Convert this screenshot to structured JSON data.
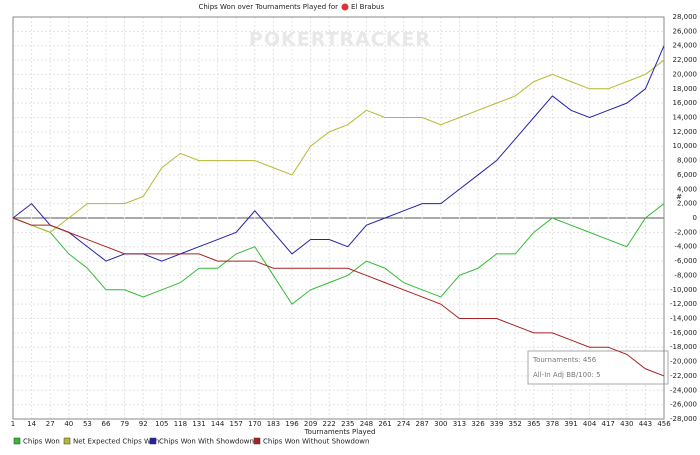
{
  "chart_data": {
    "type": "line",
    "title": "Chips Won over Tournaments Played for",
    "player": "El Brabus",
    "watermark": "POKERTRACKER",
    "x_label": "Tournaments Played",
    "y_label": "#",
    "annotation": [
      "Tournaments: 456",
      "All-In Adj BB/100: 5"
    ],
    "x": [
      1,
      14,
      27,
      40,
      53,
      66,
      79,
      92,
      105,
      118,
      131,
      144,
      157,
      170,
      183,
      196,
      209,
      222,
      235,
      248,
      261,
      274,
      287,
      300,
      313,
      326,
      339,
      352,
      365,
      378,
      391,
      404,
      417,
      430,
      443,
      456
    ],
    "xlim": [
      1,
      456
    ],
    "xticks": [
      1,
      14,
      27,
      40,
      53,
      66,
      79,
      92,
      105,
      118,
      131,
      144,
      157,
      170,
      183,
      196,
      209,
      222,
      235,
      248,
      261,
      274,
      287,
      300,
      313,
      326,
      339,
      352,
      365,
      378,
      391,
      404,
      417,
      430,
      443,
      456
    ],
    "ylim": [
      -28000,
      28000
    ],
    "yticks": [
      {
        "value": -28000,
        "label": "-28,000"
      },
      {
        "value": -26000,
        "label": "-26,000"
      },
      {
        "value": -24000,
        "label": "-24,000"
      },
      {
        "value": -22000,
        "label": "-22,000"
      },
      {
        "value": -20000,
        "label": "-20,000"
      },
      {
        "value": -18000,
        "label": "-18,000"
      },
      {
        "value": -16000,
        "label": "-16,000"
      },
      {
        "value": -14000,
        "label": "-14,000"
      },
      {
        "value": -12000,
        "label": "-12,000"
      },
      {
        "value": -10000,
        "label": "-10,000"
      },
      {
        "value": -8000,
        "label": "-8,000"
      },
      {
        "value": -6000,
        "label": "-6,000"
      },
      {
        "value": -4000,
        "label": "-4,000"
      },
      {
        "value": -2000,
        "label": "-2,000"
      },
      0,
      {
        "value": 2000,
        "label": "2,000"
      },
      {
        "value": 4000,
        "label": "4,000"
      },
      {
        "value": 6000,
        "label": "6,000"
      },
      {
        "value": 8000,
        "label": "8,000"
      },
      {
        "value": 10000,
        "label": "10,000"
      },
      {
        "value": 12000,
        "label": "12,000"
      },
      {
        "value": 14000,
        "label": "14,000"
      },
      {
        "value": 16000,
        "label": "16,000"
      },
      {
        "value": 18000,
        "label": "18,000"
      },
      {
        "value": 20000,
        "label": "20,000"
      },
      {
        "value": 22000,
        "label": "22,000"
      },
      {
        "value": 24000,
        "label": "24,000"
      },
      {
        "value": 26000,
        "label": "26,000"
      },
      {
        "value": 28000,
        "label": "28,000"
      }
    ],
    "grid": true,
    "legend": "bottom",
    "series": [
      {
        "name": "Chips Won",
        "color": "#33bb33",
        "values": [
          0,
          -1000,
          -2000,
          -5000,
          -7000,
          -10000,
          -10000,
          -11000,
          -10000,
          -9000,
          -7000,
          -7000,
          -5000,
          -4000,
          -8000,
          -12000,
          -10000,
          -9000,
          -8000,
          -6000,
          -7000,
          -9000,
          -10000,
          -11000,
          -8000,
          -7000,
          -5000,
          -5000,
          -2000,
          0,
          -1000,
          -2000,
          -3000,
          -4000,
          0,
          2000
        ]
      },
      {
        "name": "Net Expected Chips Won",
        "color": "#b8b832",
        "values": [
          0,
          -1000,
          -2000,
          0,
          2000,
          2000,
          2000,
          3000,
          7000,
          9000,
          8000,
          8000,
          8000,
          8000,
          7000,
          6000,
          10000,
          12000,
          13000,
          15000,
          14000,
          14000,
          14000,
          13000,
          14000,
          15000,
          16000,
          17000,
          19000,
          20000,
          19000,
          18000,
          18000,
          19000,
          20000,
          22000
        ]
      },
      {
        "name": "Chips Won With Showdown",
        "color": "#2222aa",
        "values": [
          0,
          2000,
          -1000,
          -2000,
          -4000,
          -6000,
          -5000,
          -5000,
          -6000,
          -5000,
          -4000,
          -3000,
          -2000,
          1000,
          -2000,
          -5000,
          -3000,
          -3000,
          -4000,
          -1000,
          0,
          1000,
          2000,
          2000,
          4000,
          6000,
          8000,
          11000,
          14000,
          17000,
          15000,
          14000,
          15000,
          16000,
          18000,
          24000
        ]
      },
      {
        "name": "Chips Won Without Showdown",
        "color": "#aa2222",
        "values": [
          0,
          -1000,
          -1000,
          -2000,
          -3000,
          -4000,
          -5000,
          -5000,
          -5000,
          -5000,
          -5000,
          -6000,
          -6000,
          -6000,
          -7000,
          -7000,
          -7000,
          -7000,
          -7000,
          -8000,
          -9000,
          -10000,
          -11000,
          -12000,
          -14000,
          -14000,
          -14000,
          -15000,
          -16000,
          -16000,
          -17000,
          -18000,
          -18000,
          -19000,
          -21000,
          -22000
        ]
      }
    ]
  }
}
